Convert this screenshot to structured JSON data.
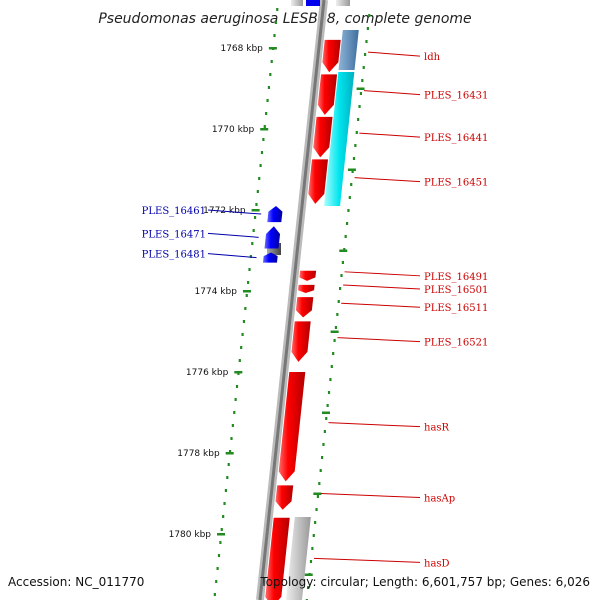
{
  "title": "Pseudomonas aeruginosa LESB58, complete genome",
  "footer": {
    "accession": "Accession: NC_011770",
    "topology": "Topology: circular; Length: 6,601,757 bp; Genes: 6,026"
  },
  "colors": {
    "forward_gene": "#ee0000",
    "reverse_gene": "#0000ee",
    "cds_light": "#00eeee",
    "cds_steel": "#4682b4",
    "gray_feature": "#bbbbbb",
    "backbone": "#777777",
    "tick": "#228b22",
    "forward_label": "#cc0000",
    "reverse_label": "#0000aa"
  },
  "chart_data": {
    "type": "genome-map",
    "ticks": [
      {
        "label": "1768 kbp",
        "kbp": 1768
      },
      {
        "label": "1770 kbp",
        "kbp": 1770
      },
      {
        "label": "1772 kbp",
        "kbp": 1772
      },
      {
        "label": "1774 kbp",
        "kbp": 1774
      },
      {
        "label": "1776 kbp",
        "kbp": 1776
      },
      {
        "label": "1778 kbp",
        "kbp": 1778
      },
      {
        "label": "1780 kbp",
        "kbp": 1780
      }
    ],
    "forward_genes": [
      {
        "label": "ldh",
        "start_kbp": 1767.8,
        "end_kbp": 1768.6
      },
      {
        "label": "PLES_16431",
        "start_kbp": 1768.65,
        "end_kbp": 1769.65
      },
      {
        "label": "PLES_16441",
        "start_kbp": 1769.7,
        "end_kbp": 1770.7
      },
      {
        "label": "PLES_16451",
        "start_kbp": 1770.75,
        "end_kbp": 1771.85
      },
      {
        "label": "PLES_16491",
        "start_kbp": 1773.5,
        "end_kbp": 1773.75
      },
      {
        "label": "PLES_16501",
        "start_kbp": 1773.85,
        "end_kbp": 1774.05
      },
      {
        "label": "PLES_16511",
        "start_kbp": 1774.15,
        "end_kbp": 1774.65
      },
      {
        "label": "PLES_16521",
        "start_kbp": 1774.75,
        "end_kbp": 1775.75
      },
      {
        "label": "hasR",
        "start_kbp": 1776.0,
        "end_kbp": 1778.7
      },
      {
        "label": "hasAp",
        "start_kbp": 1778.8,
        "end_kbp": 1779.4
      },
      {
        "label": "hasD",
        "start_kbp": 1779.6,
        "end_kbp": 1781.8
      }
    ],
    "reverse_genes": [
      {
        "label": "PLES_16461",
        "start_kbp": 1771.9,
        "end_kbp": 1772.3
      },
      {
        "label": "PLES_16471",
        "start_kbp": 1772.4,
        "end_kbp": 1772.95
      },
      {
        "label": "PLES_16481",
        "start_kbp": 1773.05,
        "end_kbp": 1773.3
      }
    ]
  }
}
